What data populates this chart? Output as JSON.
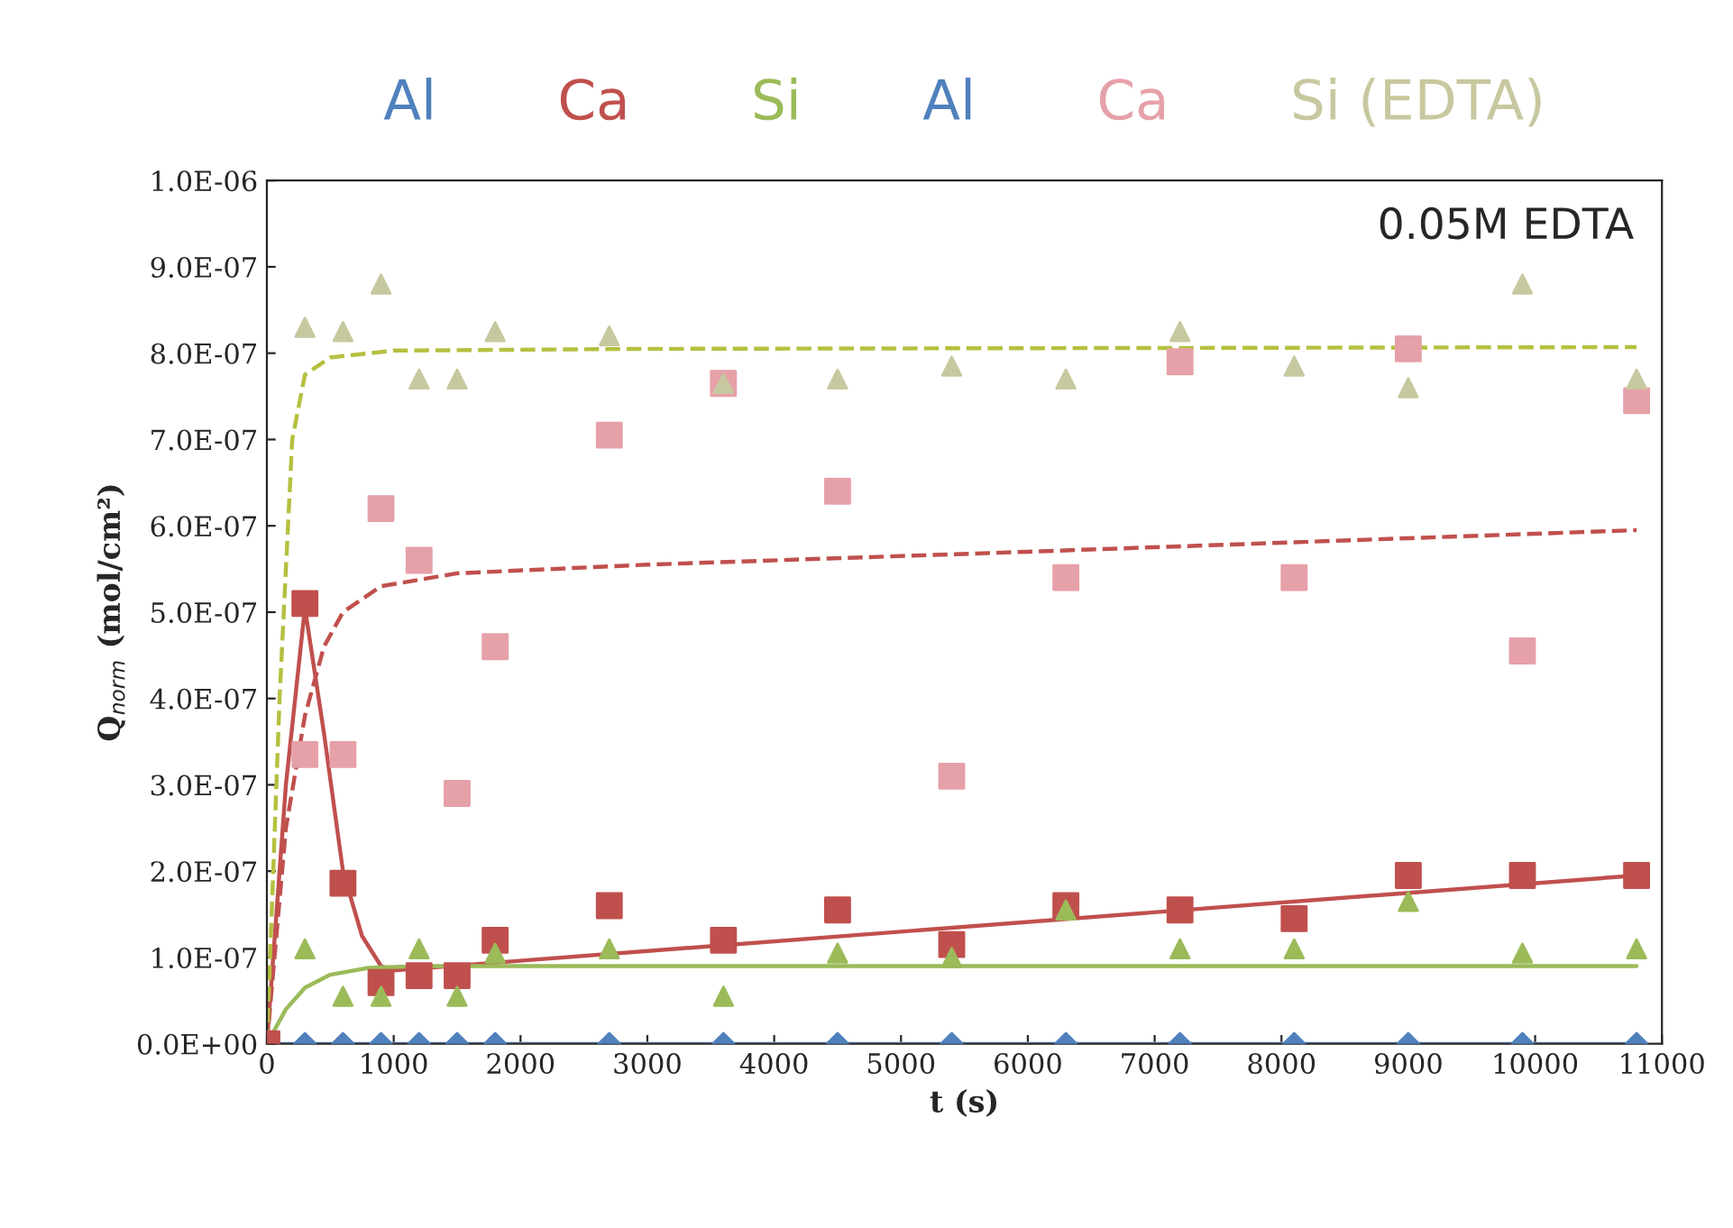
{
  "chart_data": {
    "type": "scatter",
    "ylabel": "Q$_{norm}$ (mol/cm²)",
    "xlabel": "t (s)",
    "annotations": [
      "0.05M EDTA"
    ],
    "x": [
      0,
      300,
      600,
      900,
      1200,
      1500,
      1800,
      2700,
      3600,
      4500,
      5400,
      6300,
      7200,
      8100,
      9000,
      9900,
      10800
    ],
    "xlim": [
      0,
      11000
    ],
    "xticks": [
      0,
      1000,
      2000,
      3000,
      4000,
      5000,
      6000,
      7000,
      8000,
      9000,
      10000,
      11000
    ],
    "ylim": [
      0,
      1e-06
    ],
    "yticks": [
      {
        "value": 0,
        "label": "0.0E+00"
      },
      {
        "value": 1e-07,
        "label": "1.0E-07"
      },
      {
        "value": 2e-07,
        "label": "2.0E-07"
      },
      {
        "value": 3e-07,
        "label": "3.0E-07"
      },
      {
        "value": 4e-07,
        "label": "4.0E-07"
      },
      {
        "value": 5e-07,
        "label": "5.0E-07"
      },
      {
        "value": 6e-07,
        "label": "6.0E-07"
      },
      {
        "value": 7e-07,
        "label": "7.0E-07"
      },
      {
        "value": 8e-07,
        "label": "8.0E-07"
      },
      {
        "value": 9e-07,
        "label": "9.0E-07"
      },
      {
        "value": 1e-06,
        "label": "1.0E-06"
      }
    ],
    "grid": false,
    "legend": "top",
    "series": [
      {
        "type": "line",
        "color": "#8db3e2",
        "line_style": "solid",
        "marker": "none",
        "x": [
          0,
          10800
        ],
        "values": [
          0,
          0
        ]
      },
      {
        "type": "line",
        "color": "#c0504d",
        "line_style": "solid",
        "marker": "none",
        "x": [
          0,
          150,
          300,
          450,
          600,
          750,
          900,
          1000,
          10800
        ],
        "values": [
          0,
          3e-07,
          5.05e-07,
          3.6e-07,
          2e-07,
          1.25e-07,
          9e-08,
          8.5e-08,
          1.95e-07
        ]
      },
      {
        "type": "line",
        "color": "#9bbb59",
        "line_style": "solid",
        "marker": "none",
        "x": [
          0,
          150,
          300,
          500,
          800,
          1200,
          10800
        ],
        "values": [
          0,
          4e-08,
          6.5e-08,
          8e-08,
          8.8e-08,
          9e-08,
          9e-08
        ]
      },
      {
        "type": "line",
        "color": "#c0504d",
        "line_style": "dashed",
        "marker": "none",
        "x": [
          0,
          150,
          300,
          450,
          600,
          900,
          1500,
          3000,
          6000,
          10800
        ],
        "values": [
          0,
          2.5e-07,
          3.8e-07,
          4.6e-07,
          5e-07,
          5.3e-07,
          5.45e-07,
          5.55e-07,
          5.7e-07,
          5.95e-07
        ]
      },
      {
        "type": "line",
        "color": "#b5c040",
        "line_style": "dashed",
        "marker": "none",
        "x": [
          0,
          100,
          200,
          300,
          500,
          1000,
          3000,
          10800
        ],
        "values": [
          0,
          4e-07,
          7e-07,
          7.75e-07,
          7.95e-07,
          8.03e-07,
          8.05e-07,
          8.07e-07
        ]
      },
      {
        "name": "Al",
        "color": "#4f81bd",
        "marker": "diamond",
        "values": [
          null,
          0,
          0,
          0,
          0,
          0,
          0,
          0,
          0,
          0,
          0,
          0,
          0,
          0,
          0,
          0,
          0
        ]
      },
      {
        "name": "Ca",
        "color": "#c0504d",
        "marker": "square",
        "values": [
          0,
          5.1e-07,
          1.86e-07,
          7.1e-08,
          7.9e-08,
          7.9e-08,
          1.2e-07,
          1.6e-07,
          1.2e-07,
          1.55e-07,
          1.15e-07,
          1.6e-07,
          1.55e-07,
          1.45e-07,
          1.95e-07,
          1.95e-07,
          1.95e-07
        ]
      },
      {
        "name": "Si",
        "color": "#9bbb59",
        "marker": "triangle",
        "values": [
          null,
          1.1e-07,
          5.5e-08,
          5.5e-08,
          1.1e-07,
          5.5e-08,
          1.05e-07,
          1.1e-07,
          5.5e-08,
          1.05e-07,
          1e-07,
          1.55e-07,
          1.1e-07,
          1.1e-07,
          1.65e-07,
          1.05e-07,
          1.1e-07
        ]
      },
      {
        "name": "Al",
        "color": "#4f81bd",
        "marker": "diamond",
        "values": [
          null,
          null,
          null,
          null,
          null,
          null,
          null,
          null,
          null,
          null,
          null,
          null,
          null,
          null,
          null,
          null,
          null
        ]
      },
      {
        "name": "Ca",
        "color": "#e6a0a8",
        "marker": "square",
        "values": [
          null,
          3.35e-07,
          3.35e-07,
          6.2e-07,
          5.6e-07,
          2.9e-07,
          4.6e-07,
          7.05e-07,
          7.65e-07,
          6.4e-07,
          3.1e-07,
          5.4e-07,
          7.9e-07,
          5.4e-07,
          8.05e-07,
          4.55e-07,
          7.45e-07
        ]
      },
      {
        "name": "Si (EDTA)",
        "color": "#c8c8a0",
        "marker": "triangle",
        "values": [
          null,
          8.3e-07,
          8.25e-07,
          8.8e-07,
          7.7e-07,
          7.7e-07,
          8.25e-07,
          8.2e-07,
          7.65e-07,
          7.7e-07,
          7.85e-07,
          7.7e-07,
          8.25e-07,
          7.85e-07,
          7.6e-07,
          8.8e-07,
          7.7e-07
        ]
      }
    ]
  }
}
